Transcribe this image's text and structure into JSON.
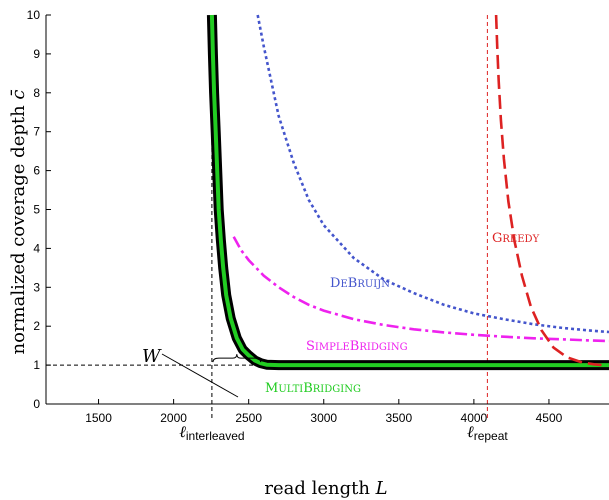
{
  "chart_data": {
    "type": "line",
    "xlabel": "read length L",
    "ylabel": "normalized coverage depth c̄",
    "xlim": [
      1150,
      4900
    ],
    "ylim": [
      0,
      10
    ],
    "xticks": [
      1500,
      2000,
      2500,
      3000,
      3500,
      4000,
      4500
    ],
    "yticks": [
      0,
      1,
      2,
      3,
      4,
      5,
      6,
      7,
      8,
      9,
      10
    ],
    "grid": false,
    "series": [
      {
        "name": "MultiBridging",
        "color": "#000000",
        "highlight_color": "#22cc22",
        "style": "solid",
        "x": [
          2255,
          2262,
          2270,
          2280,
          2290,
          2300,
          2315,
          2330,
          2350,
          2380,
          2420,
          2460,
          2500,
          2540,
          2580,
          2620,
          2700,
          2800,
          3000,
          3500,
          4000,
          4500,
          4900
        ],
        "y": [
          10,
          9,
          8,
          7,
          6,
          5,
          4.2,
          3.5,
          2.8,
          2.2,
          1.7,
          1.4,
          1.25,
          1.12,
          1.05,
          1.01,
          1.0,
          1.0,
          1.0,
          1.0,
          1.0,
          1.0,
          1.0
        ]
      },
      {
        "name": "DeBruijn",
        "color": "#4455cc",
        "style": "dotted",
        "x": [
          2560,
          2600,
          2650,
          2700,
          2800,
          2900,
          3000,
          3200,
          3400,
          3600,
          3800,
          4000,
          4200,
          4400,
          4600,
          4800,
          4900
        ],
        "y": [
          10,
          9.2,
          8.3,
          7.4,
          6.2,
          5.25,
          4.6,
          3.75,
          3.2,
          2.85,
          2.55,
          2.33,
          2.18,
          2.05,
          1.95,
          1.88,
          1.85
        ]
      },
      {
        "name": "SimpleBridging",
        "color": "#ee22ee",
        "style": "dashdot",
        "x": [
          2400,
          2450,
          2500,
          2600,
          2700,
          2800,
          2900,
          3000,
          3200,
          3400,
          3600,
          3800,
          4000,
          4200,
          4400,
          4600,
          4800,
          4900
        ],
        "y": [
          4.3,
          3.95,
          3.7,
          3.3,
          3.0,
          2.75,
          2.55,
          2.4,
          2.18,
          2.03,
          1.92,
          1.84,
          1.78,
          1.73,
          1.69,
          1.66,
          1.63,
          1.62
        ]
      },
      {
        "name": "Greedy",
        "color": "#dd2222",
        "style": "dashed",
        "x": [
          4148,
          4155,
          4165,
          4180,
          4200,
          4230,
          4270,
          4320,
          4380,
          4450,
          4530,
          4620,
          4720,
          4800,
          4850
        ],
        "y": [
          10,
          9.2,
          8.3,
          7.3,
          6.3,
          5.2,
          4.2,
          3.3,
          2.5,
          1.9,
          1.45,
          1.2,
          1.07,
          1.02,
          1.0
        ]
      }
    ],
    "reference_lines": [
      {
        "label": "ℓinterleaved",
        "main": "ℓ",
        "sub": "interleaved",
        "x": 2255,
        "orientation": "vertical",
        "color": "#000000"
      },
      {
        "label": "ℓrepeat",
        "main": "ℓ",
        "sub": "repeat",
        "x": 4090,
        "orientation": "vertical",
        "color": "#dd2222"
      },
      {
        "y": 1,
        "orientation": "horizontal",
        "color": "#000000"
      }
    ],
    "annotations": [
      {
        "text": "W",
        "target": "gap between ℓinterleaved and MultiBridging curve at c̄ = 1"
      }
    ]
  }
}
